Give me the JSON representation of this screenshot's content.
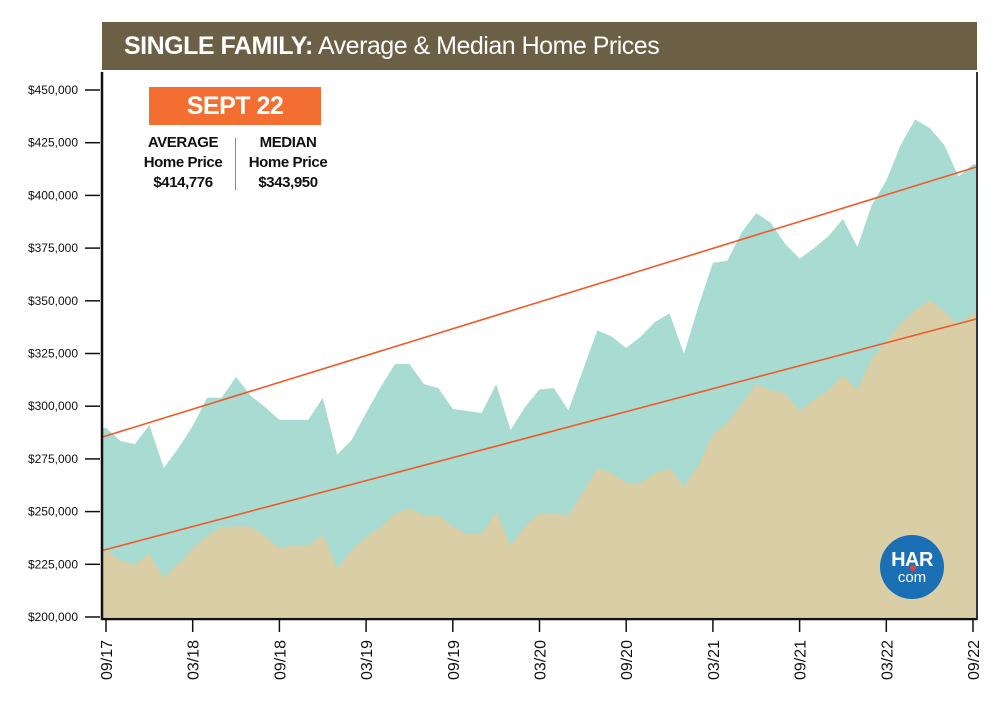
{
  "chart_data": {
    "type": "area",
    "title_bold": "SINGLE FAMILY:",
    "title_rest": "Average & Median Home Prices",
    "ylim": [
      200000,
      450000
    ],
    "y_ticks": [
      "$200,000",
      "$225,000",
      "$250,000",
      "$275,000",
      "$300,000",
      "$325,000",
      "$350,000",
      "$375,000",
      "$400,000",
      "$425,000",
      "$450,000"
    ],
    "x_tick_labels": [
      "09/17",
      "03/18",
      "09/18",
      "03/19",
      "09/19",
      "03/20",
      "09/20",
      "03/21",
      "09/21",
      "03/22",
      "09/22"
    ],
    "x_range_months": "09/17 - 09/22 monthly",
    "series": [
      {
        "key": "average",
        "color": "#a8dbd1",
        "values": [
          289700,
          283500,
          282000,
          291000,
          270700,
          280000,
          290600,
          304000,
          304000,
          314000,
          305000,
          299600,
          293500,
          293500,
          293500,
          304000,
          277000,
          284000,
          296800,
          309000,
          320000,
          320000,
          310500,
          308600,
          298700,
          297700,
          296800,
          310500,
          288700,
          299600,
          308000,
          308600,
          298000,
          317000,
          336000,
          333000,
          327600,
          333000,
          340000,
          344000,
          324800,
          347500,
          368000,
          369000,
          382600,
          391600,
          387000,
          377000,
          370000,
          375000,
          380700,
          388800,
          375500,
          395500,
          407000,
          424000,
          436000,
          432000,
          424000,
          409000,
          414776
        ]
      },
      {
        "key": "median",
        "color": "#d9cea6",
        "values": [
          231800,
          227000,
          224700,
          230000,
          218500,
          225000,
          232700,
          238400,
          242700,
          243000,
          243000,
          238400,
          232700,
          234000,
          234000,
          239000,
          223000,
          231800,
          238000,
          242700,
          248900,
          251700,
          248000,
          248400,
          243000,
          239400,
          239400,
          249800,
          234000,
          243000,
          249000,
          249000,
          248400,
          259000,
          270700,
          268300,
          263600,
          263600,
          268300,
          270700,
          262000,
          272000,
          286800,
          292000,
          301500,
          310500,
          307700,
          306000,
          297700,
          303000,
          307700,
          314800,
          307700,
          322900,
          330500,
          339000,
          345600,
          350400,
          345000,
          338500,
          343950
        ]
      }
    ],
    "trend_lines": [
      {
        "key": "average-trend",
        "start": 285900,
        "end": 413000,
        "color": "#f05a28"
      },
      {
        "key": "median-trend",
        "start": 232000,
        "end": 341000,
        "color": "#f05a28"
      }
    ],
    "grid": false
  },
  "callout": {
    "badge": "SEPT 22",
    "average": {
      "line1": "AVERAGE",
      "line2": "Home Price",
      "value": "$414,776"
    },
    "median": {
      "line1": "MEDIAN",
      "line2": "Home Price",
      "value": "$343,950"
    }
  },
  "logo": {
    "text1": "HAR",
    "text2": "com",
    "color": "#1a6fb5"
  }
}
